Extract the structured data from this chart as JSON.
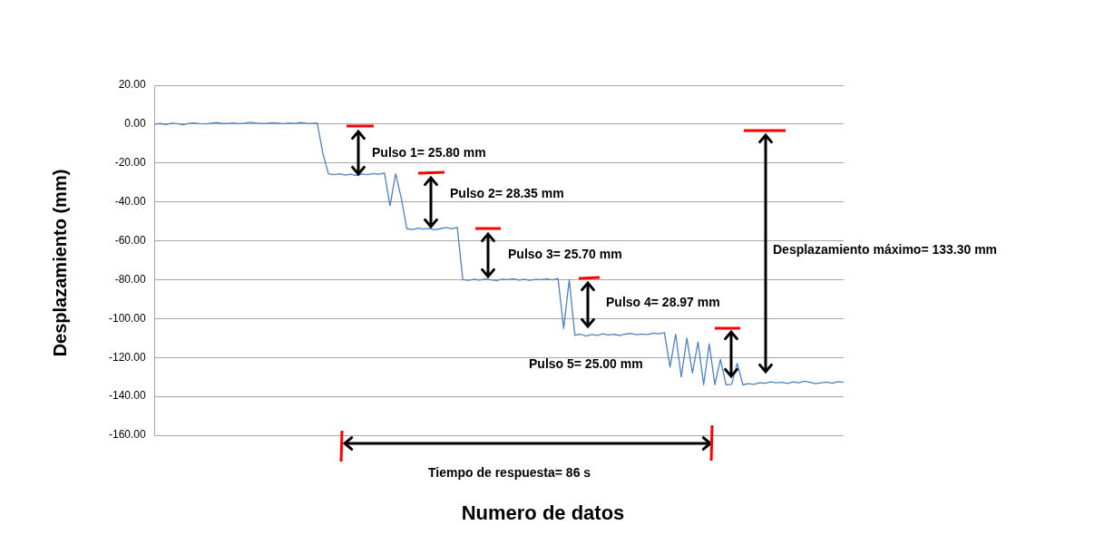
{
  "chart_data": {
    "type": "line",
    "xlabel": "Numero de datos",
    "ylabel": "Desplazamiento  (mm)",
    "categories": [
      null,
      null,
      null,
      null,
      null,
      null,
      null,
      null,
      null,
      null,
      null,
      null,
      null,
      null,
      null,
      null,
      null,
      null,
      null,
      null,
      null,
      null,
      null,
      null,
      null,
      null,
      null,
      null,
      null,
      null,
      null,
      null,
      null,
      null,
      null,
      null,
      null,
      null,
      null,
      null,
      null,
      null,
      null,
      null,
      null,
      null,
      null,
      null,
      null,
      null,
      null,
      null,
      null,
      null,
      null,
      null,
      null,
      null,
      null,
      null,
      null,
      null,
      null,
      null,
      null,
      null,
      null,
      null,
      null,
      null,
      null,
      null,
      null,
      null,
      null,
      null,
      null,
      null,
      null,
      null,
      null,
      null,
      null,
      null,
      null,
      null,
      null,
      null,
      null,
      null,
      null,
      null,
      null,
      null,
      null,
      null,
      null,
      null,
      null,
      null,
      null,
      null,
      null,
      null,
      null,
      null,
      null,
      null,
      null,
      null,
      null,
      null,
      null,
      null,
      null,
      null,
      null,
      null,
      null,
      null,
      null,
      null,
      null,
      null
    ],
    "series": [
      {
        "color": "#4f81bd",
        "values": [
          0,
          0.3,
          -0.2,
          0.5,
          0.2,
          -0.3,
          0.4,
          0.6,
          0.2,
          0.1,
          0.5,
          0.8,
          0.3,
          0.4,
          0.6,
          0.2,
          0.5,
          0.9,
          0.6,
          0.4,
          0.3,
          0.7,
          0.5,
          0.2,
          0.6,
          0.4,
          0.8,
          0.5,
          0.3,
          0.6,
          -15,
          -25.5,
          -26,
          -25.5,
          -26.2,
          -25.8,
          -26.5,
          -25.6,
          -26,
          -25.4,
          -25.8,
          -25.2,
          -42,
          -25.5,
          -38,
          -53.8,
          -54.2,
          -53.5,
          -54,
          -53.6,
          -54.3,
          -53.8,
          -53.2,
          -53.9,
          -53,
          -80,
          -80.3,
          -79.8,
          -80.2,
          -79.6,
          -80.1,
          -80.4,
          -79.7,
          -80,
          -79.5,
          -80.2,
          -79.8,
          -80.3,
          -79.9,
          -80,
          -79.6,
          -80.1,
          -79.4,
          -105,
          -80,
          -108.5,
          -108,
          -109,
          -108.2,
          -108.6,
          -107.8,
          -108.4,
          -108.1,
          -108.7,
          -108,
          -107.6,
          -108.3,
          -107.9,
          -108.2,
          -107.5,
          -107.8,
          -107.2,
          -125,
          -108,
          -130,
          -110,
          -128,
          -112,
          -134,
          -113,
          -134,
          -121,
          -134,
          -133.8,
          -123,
          -134,
          -133.5,
          -133.8,
          -133,
          -133.2,
          -132.5,
          -133,
          -132.8,
          -133.4,
          -132.6,
          -133,
          -132.2,
          -132.8,
          -133.5,
          -133,
          -132.7,
          -133.2,
          -132.4,
          -132.8
        ]
      }
    ],
    "ylim": [
      -160,
      20
    ],
    "yticks": [
      {
        "value": 20,
        "label": "20.00"
      },
      {
        "value": 0,
        "label": "0.00"
      },
      {
        "value": -20,
        "label": "-20.00"
      },
      {
        "value": -40,
        "label": "-40.00"
      },
      {
        "value": -60,
        "label": "-60.00"
      },
      {
        "value": -80,
        "label": "-80.00"
      },
      {
        "value": -100,
        "label": "-100.00"
      },
      {
        "value": -120,
        "label": "-120.00"
      },
      {
        "value": -140,
        "label": "-140.00"
      },
      {
        "value": -160,
        "label": "-160.00"
      }
    ],
    "grid": "y",
    "legend": false,
    "marker": "none",
    "line_style": "solid",
    "annotations": [
      "Pulso 1= 25.80  mm",
      "Pulso 2= 28.35  mm",
      "Pulso 3= 25.70  mm",
      "Pulso 4= 28.97  mm",
      "Pulso 5= 25.00  mm",
      "Desplazamiento máximo= 133.30 mm",
      "Tiempo de respuesta= 86 s"
    ]
  }
}
